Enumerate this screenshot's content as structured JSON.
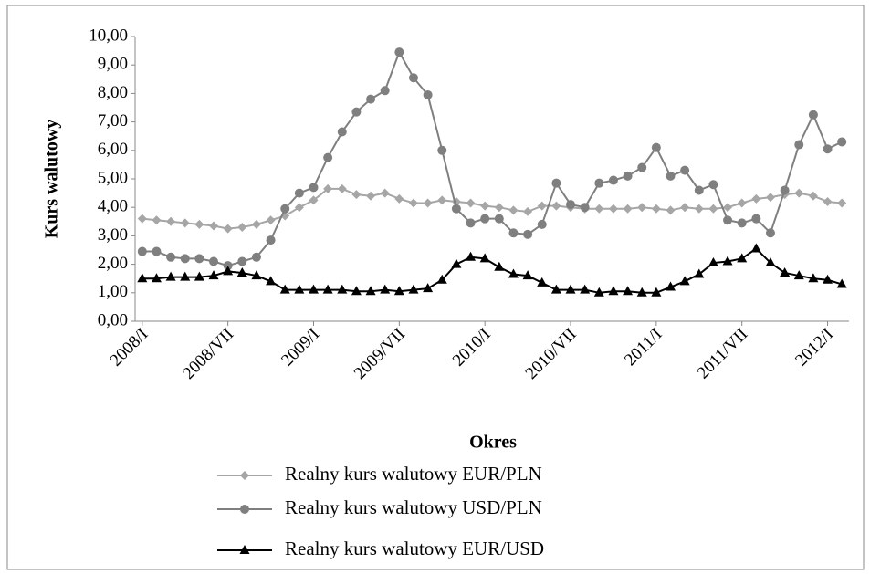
{
  "chart_data": {
    "type": "line",
    "y_label": "Kurs walutowy",
    "x_label": "Okres",
    "categories": [
      "2008/I",
      null,
      null,
      null,
      null,
      null,
      "2008/VII",
      null,
      null,
      null,
      null,
      null,
      "2009/I",
      null,
      null,
      null,
      null,
      null,
      "2009/VII",
      null,
      null,
      null,
      null,
      null,
      "2010/I",
      null,
      null,
      null,
      null,
      null,
      "2010/VII",
      null,
      null,
      null,
      null,
      null,
      "2011/I",
      null,
      null,
      null,
      null,
      null,
      "2011/VII",
      null,
      null,
      null,
      null,
      null,
      "2012/I",
      null
    ],
    "series": [
      {
        "name": "Realny kurs walutowy EUR/PLN",
        "color": "#a6a6a6",
        "marker": "diamond",
        "values": [
          3.6,
          3.55,
          3.5,
          3.45,
          3.4,
          3.35,
          3.25,
          3.3,
          3.4,
          3.55,
          3.7,
          4.0,
          4.25,
          4.65,
          4.65,
          4.45,
          4.4,
          4.5,
          4.3,
          4.15,
          4.15,
          4.25,
          4.2,
          4.15,
          4.05,
          4.0,
          3.9,
          3.85,
          4.05,
          4.05,
          4.0,
          3.95,
          3.95,
          3.95,
          3.95,
          4.0,
          3.95,
          3.9,
          4.0,
          3.95,
          3.95,
          4.0,
          4.15,
          4.3,
          4.35,
          4.45,
          4.5,
          4.4,
          4.2,
          4.15
        ]
      },
      {
        "name": "Realny kurs walutowy USD/PLN",
        "color": "#7f7f7f",
        "marker": "circle",
        "values": [
          2.45,
          2.45,
          2.25,
          2.2,
          2.2,
          2.1,
          1.95,
          2.1,
          2.25,
          2.85,
          3.95,
          4.5,
          4.7,
          5.75,
          6.65,
          7.35,
          7.8,
          8.1,
          9.45,
          8.55,
          7.95,
          6.0,
          3.95,
          3.45,
          3.6,
          3.6,
          3.1,
          3.05,
          3.4,
          4.85,
          4.1,
          4.0,
          4.85,
          4.95,
          5.1,
          5.4,
          6.1,
          5.1,
          5.3,
          4.6,
          4.8,
          3.55,
          3.45,
          3.6,
          3.1,
          4.6,
          6.2,
          7.25,
          6.05,
          6.3
        ]
      },
      {
        "name": "Realny kurs walutowy EUR/USD",
        "color": "#000000",
        "marker": "triangle",
        "values": [
          1.5,
          1.5,
          1.55,
          1.55,
          1.55,
          1.6,
          1.75,
          1.7,
          1.6,
          1.4,
          1.1,
          1.1,
          1.1,
          1.1,
          1.1,
          1.05,
          1.05,
          1.1,
          1.05,
          1.1,
          1.15,
          1.45,
          2.0,
          2.25,
          2.2,
          1.9,
          1.65,
          1.6,
          1.35,
          1.1,
          1.1,
          1.1,
          1.0,
          1.05,
          1.05,
          1.0,
          1.0,
          1.2,
          1.4,
          1.65,
          2.05,
          2.1,
          2.2,
          2.55,
          2.05,
          1.7,
          1.6,
          1.5,
          1.45,
          1.3
        ]
      }
    ],
    "ylim": [
      0,
      10
    ],
    "yticks": [
      {
        "value": 0,
        "label": "0,00"
      },
      {
        "value": 1,
        "label": "1,00"
      },
      {
        "value": 2,
        "label": "2,00"
      },
      {
        "value": 3,
        "label": "3,00"
      },
      {
        "value": 4,
        "label": "4,00"
      },
      {
        "value": 5,
        "label": "5,00"
      },
      {
        "value": 6,
        "label": "6,00"
      },
      {
        "value": 7,
        "label": "7,00"
      },
      {
        "value": 8,
        "label": "8,00"
      },
      {
        "value": 9,
        "label": "9,00"
      },
      {
        "value": 10,
        "label": "10,00"
      }
    ],
    "grid": false,
    "legend": "bottom"
  }
}
